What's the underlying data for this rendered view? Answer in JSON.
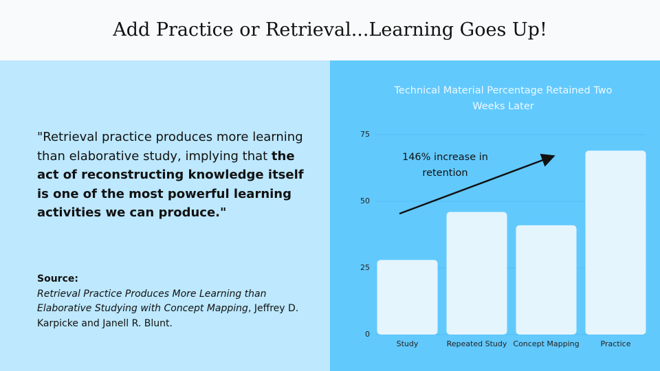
{
  "header": {
    "title": "Add Practice or Retrieval...Learning Goes Up!"
  },
  "quote": {
    "plain": "\"Retrieval practice produces more learning than elaborative study, implying that ",
    "bold": "the act of reconstructing knowledge itself is one of the most powerful learning activities we can produce.\""
  },
  "source": {
    "label": "Source:",
    "title": "Retrieval Practice Produces More Learning than Elaborative Studying with Concept Mapping",
    "authors": ", Jeffrey D. Karpicke and Janell R. Blunt."
  },
  "chart_data": {
    "type": "bar",
    "title": "Technical Material Percentage Retained Two Weeks Later",
    "annotation": "146% increase in retention",
    "categories": [
      "Study",
      "Repeated Study",
      "Concept Mapping",
      "Practice"
    ],
    "values": [
      28,
      46,
      41,
      69
    ],
    "color": "#e4f5fd",
    "ylim": [
      0,
      75
    ],
    "yticks": [
      0,
      25,
      50,
      75
    ],
    "grid": true
  }
}
